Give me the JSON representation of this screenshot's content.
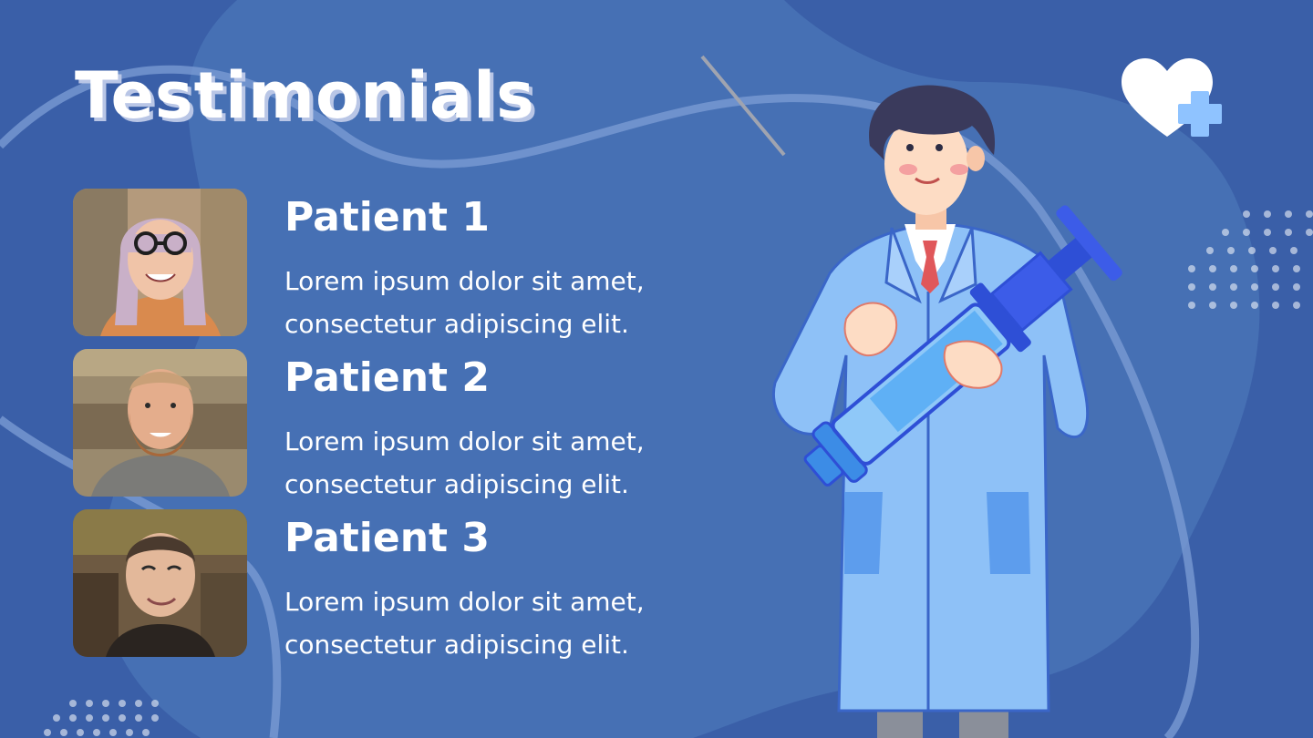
{
  "title": "Testimonials",
  "testimonials": [
    {
      "name": "Patient 1",
      "text": "Lorem ipsum dolor sit amet, consectetur adipiscing elit."
    },
    {
      "name": "Patient 2",
      "text": "Lorem ipsum dolor sit amet, consectetur adipiscing elit."
    },
    {
      "name": "Patient 3",
      "text": "Lorem ipsum dolor sit amet, consectetur adipiscing elit."
    }
  ],
  "colors": {
    "background": "#3a5fa8",
    "blob": "#4670b4",
    "accent_light": "#8fc3ff",
    "coat": "#8ec1f7",
    "syringe_blue": "#2e4fd6"
  },
  "icons": {
    "logo": "heart-plus-icon",
    "illustration": "doctor-with-syringe"
  }
}
